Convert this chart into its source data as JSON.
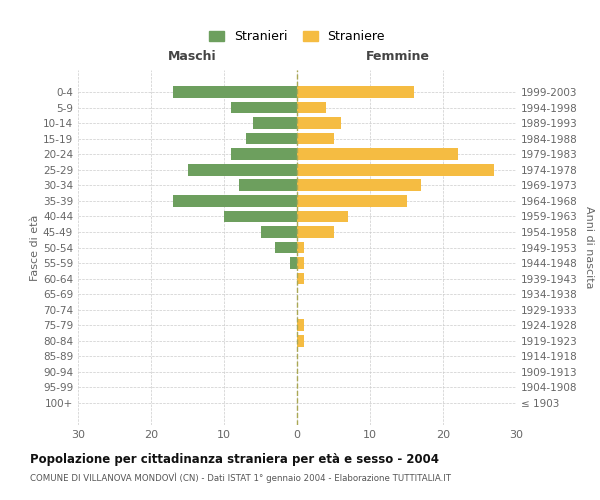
{
  "age_groups": [
    "0-4",
    "5-9",
    "10-14",
    "15-19",
    "20-24",
    "25-29",
    "30-34",
    "35-39",
    "40-44",
    "45-49",
    "50-54",
    "55-59",
    "60-64",
    "65-69",
    "70-74",
    "75-79",
    "80-84",
    "85-89",
    "90-94",
    "95-99",
    "100+"
  ],
  "birth_years": [
    "1999-2003",
    "1994-1998",
    "1989-1993",
    "1984-1988",
    "1979-1983",
    "1974-1978",
    "1969-1973",
    "1964-1968",
    "1959-1963",
    "1954-1958",
    "1949-1953",
    "1944-1948",
    "1939-1943",
    "1934-1938",
    "1929-1933",
    "1924-1928",
    "1919-1923",
    "1914-1918",
    "1909-1913",
    "1904-1908",
    "≤ 1903"
  ],
  "males": [
    17,
    9,
    6,
    7,
    9,
    15,
    8,
    17,
    10,
    5,
    3,
    1,
    0,
    0,
    0,
    0,
    0,
    0,
    0,
    0,
    0
  ],
  "females": [
    16,
    4,
    6,
    5,
    22,
    27,
    17,
    15,
    7,
    5,
    1,
    1,
    1,
    0,
    0,
    1,
    1,
    0,
    0,
    0,
    0
  ],
  "male_color": "#6d9f5e",
  "female_color": "#f5bc42",
  "male_label": "Stranieri",
  "female_label": "Straniere",
  "xlim": [
    -30,
    30
  ],
  "xticks": [
    -30,
    -20,
    -10,
    0,
    10,
    20,
    30
  ],
  "xticklabels": [
    "30",
    "20",
    "10",
    "0",
    "10",
    "20",
    "30"
  ],
  "left_header": "Maschi",
  "right_header": "Femmine",
  "left_ylabel": "Fasce di età",
  "right_ylabel": "Anni di nascita",
  "title": "Popolazione per cittadinanza straniera per età e sesso - 2004",
  "subtitle": "COMUNE DI VILLANOVA MONDOVÌ (CN) - Dati ISTAT 1° gennaio 2004 - Elaborazione TUTTITALIA.IT",
  "background_color": "#ffffff",
  "grid_color": "#cccccc",
  "bar_height": 0.75
}
